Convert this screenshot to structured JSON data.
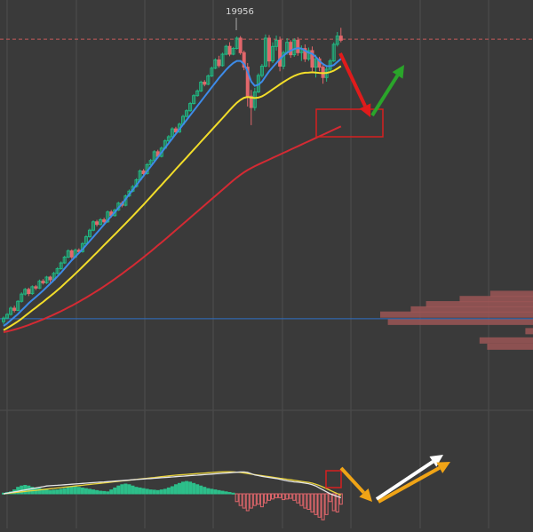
{
  "chart_data": {
    "type": "candlestick",
    "peak_label": "19956",
    "colors": {
      "background": "#3a3a3a",
      "grid": "#4d4d4d",
      "up": "#20b882",
      "down": "#e2676b",
      "ma_fast": "#3d8be8",
      "ma_mid": "#f2dd2a",
      "ma_slow": "#d42a33",
      "macd_line": "#e6e6e6",
      "signal_line": "#e8d23a",
      "hist_up": "#2dbe8a",
      "hist_down": "#e0666b",
      "price_line": "#c85a5a",
      "hline": "#2f6fc4",
      "volume_profile": "#9b5656",
      "arrow_red": "#e01b1b",
      "arrow_green": "#2aa52a",
      "arrow_white": "#ffffff",
      "arrow_orange": "#f0a416",
      "target_box": "#d62020"
    },
    "price_ylim": [
      16900,
      20100
    ],
    "price_level": 19910,
    "blue_level": 17210,
    "candles": [
      [
        17181,
        17216,
        17156,
        17232
      ],
      [
        17216,
        17252,
        17206,
        17264
      ],
      [
        17252,
        17312,
        17240,
        17330
      ],
      [
        17312,
        17291,
        17271,
        17336
      ],
      [
        17291,
        17378,
        17283,
        17390
      ],
      [
        17378,
        17448,
        17366,
        17465
      ],
      [
        17448,
        17493,
        17433,
        17508
      ],
      [
        17493,
        17453,
        17429,
        17510
      ],
      [
        17453,
        17519,
        17440,
        17533
      ],
      [
        17519,
        17506,
        17487,
        17536
      ],
      [
        17506,
        17572,
        17496,
        17588
      ],
      [
        17572,
        17557,
        17541,
        17593
      ],
      [
        17557,
        17612,
        17546,
        17624
      ],
      [
        17612,
        17586,
        17560,
        17625
      ],
      [
        17586,
        17648,
        17578,
        17664
      ],
      [
        17648,
        17693,
        17638,
        17708
      ],
      [
        17693,
        17749,
        17683,
        17763
      ],
      [
        17749,
        17805,
        17739,
        17819
      ],
      [
        17805,
        17866,
        17795,
        17880
      ],
      [
        17866,
        17806,
        17786,
        17880
      ],
      [
        17806,
        17872,
        17796,
        17888
      ],
      [
        17872,
        17858,
        17838,
        17890
      ],
      [
        17858,
        17935,
        17848,
        17950
      ],
      [
        17935,
        18002,
        17925,
        18018
      ],
      [
        18002,
        18065,
        17992,
        18080
      ],
      [
        18065,
        18146,
        18055,
        18160
      ],
      [
        18146,
        18121,
        18101,
        18165
      ],
      [
        18121,
        18166,
        18111,
        18182
      ],
      [
        18166,
        18146,
        18126,
        18186
      ],
      [
        18146,
        18241,
        18136,
        18256
      ],
      [
        18241,
        18206,
        18186,
        18260
      ],
      [
        18206,
        18260,
        18196,
        18274
      ],
      [
        18260,
        18326,
        18250,
        18340
      ],
      [
        18326,
        18306,
        18286,
        18346
      ],
      [
        18306,
        18396,
        18296,
        18410
      ],
      [
        18396,
        18442,
        18386,
        18458
      ],
      [
        18442,
        18487,
        18432,
        18502
      ],
      [
        18487,
        18552,
        18477,
        18566
      ],
      [
        18552,
        18637,
        18542,
        18652
      ],
      [
        18637,
        18612,
        18592,
        18656
      ],
      [
        18612,
        18698,
        18602,
        18714
      ],
      [
        18698,
        18738,
        18688,
        18754
      ],
      [
        18738,
        18823,
        18728,
        18838
      ],
      [
        18823,
        18778,
        18758,
        18842
      ],
      [
        18778,
        18858,
        18768,
        18874
      ],
      [
        18858,
        18928,
        18848,
        18944
      ],
      [
        18928,
        18968,
        18918,
        18984
      ],
      [
        18968,
        19044,
        18958,
        19060
      ],
      [
        19044,
        19014,
        18994,
        19064
      ],
      [
        19014,
        19089,
        19004,
        19104
      ],
      [
        19089,
        19164,
        19079,
        19180
      ],
      [
        19164,
        19219,
        19154,
        19234
      ],
      [
        19219,
        19289,
        19209,
        19304
      ],
      [
        19289,
        19365,
        19279,
        19380
      ],
      [
        19365,
        19410,
        19355,
        19425
      ],
      [
        19410,
        19495,
        19400,
        19510
      ],
      [
        19495,
        19475,
        19455,
        19515
      ],
      [
        19475,
        19555,
        19465,
        19570
      ],
      [
        19555,
        19630,
        19545,
        19646
      ],
      [
        19630,
        19710,
        19620,
        19726
      ],
      [
        19710,
        19655,
        19635,
        19750
      ],
      [
        19655,
        19765,
        19645,
        19780
      ],
      [
        19765,
        19841,
        19755,
        19856
      ],
      [
        19841,
        19765,
        19745,
        19881
      ],
      [
        19765,
        19821,
        19755,
        19836
      ],
      [
        19821,
        19920,
        19811,
        19936
      ],
      [
        19920,
        19780,
        19760,
        19940
      ],
      [
        19780,
        19640,
        19610,
        19800
      ],
      [
        19640,
        19360,
        19260,
        19680
      ],
      [
        19360,
        19250,
        19080,
        19420
      ],
      [
        19250,
        19400,
        19220,
        19440
      ],
      [
        19400,
        19560,
        19390,
        19580
      ],
      [
        19560,
        19650,
        19540,
        19670
      ],
      [
        19650,
        19920,
        19640,
        19956
      ],
      [
        19920,
        19700,
        19640,
        19950
      ],
      [
        19700,
        19840,
        19680,
        19880
      ],
      [
        19840,
        19900,
        19800,
        19945
      ],
      [
        19900,
        19650,
        19600,
        19935
      ],
      [
        19650,
        19780,
        19620,
        19800
      ],
      [
        19780,
        19880,
        19760,
        19920
      ],
      [
        19880,
        19760,
        19730,
        19900
      ],
      [
        19760,
        19900,
        19740,
        19920
      ],
      [
        19900,
        19780,
        19750,
        19930
      ],
      [
        19780,
        19820,
        19700,
        19850
      ],
      [
        19820,
        19720,
        19690,
        19860
      ],
      [
        19720,
        19800,
        19700,
        19830
      ],
      [
        19800,
        19640,
        19600,
        19840
      ],
      [
        19640,
        19720,
        19540,
        19760
      ],
      [
        19720,
        19640,
        19600,
        19740
      ],
      [
        19640,
        19540,
        19480,
        19680
      ],
      [
        19540,
        19620,
        19500,
        19660
      ],
      [
        19620,
        19700,
        19600,
        19720
      ],
      [
        19700,
        19860,
        19690,
        19880
      ],
      [
        19860,
        19940,
        19840,
        19980
      ],
      [
        19940,
        19900,
        19880,
        20020
      ]
    ],
    "ma_fast": [
      17140,
      17165,
      17195,
      17225,
      17255,
      17290,
      17325,
      17360,
      17390,
      17420,
      17450,
      17482,
      17515,
      17548,
      17582,
      17618,
      17655,
      17695,
      17735,
      17775,
      17810,
      17845,
      17880,
      17920,
      17960,
      18000,
      18040,
      18080,
      18120,
      18160,
      18200,
      18240,
      18280,
      18320,
      18365,
      18410,
      18455,
      18500,
      18545,
      18590,
      18635,
      18680,
      18725,
      18770,
      18815,
      18860,
      18905,
      18950,
      18995,
      19040,
      19085,
      19130,
      19175,
      19220,
      19265,
      19310,
      19355,
      19400,
      19445,
      19490,
      19535,
      19575,
      19615,
      19650,
      19680,
      19700,
      19700,
      19670,
      19600,
      19500,
      19460,
      19470,
      19500,
      19550,
      19600,
      19640,
      19680,
      19720,
      19750,
      19780,
      19800,
      19815,
      19825,
      19820,
      19800,
      19780,
      19770,
      19740,
      19700,
      19670,
      19650,
      19650,
      19660,
      19690,
      19720
    ],
    "ma_mid": [
      17100,
      17120,
      17140,
      17162,
      17185,
      17210,
      17238,
      17265,
      17292,
      17318,
      17345,
      17372,
      17400,
      17428,
      17456,
      17486,
      17516,
      17548,
      17580,
      17612,
      17645,
      17678,
      17712,
      17746,
      17780,
      17815,
      17850,
      17885,
      17920,
      17955,
      17990,
      18025,
      18060,
      18095,
      18130,
      18166,
      18202,
      18238,
      18275,
      18312,
      18350,
      18388,
      18426,
      18464,
      18502,
      18540,
      18578,
      18616,
      18654,
      18692,
      18730,
      18768,
      18806,
      18844,
      18882,
      18920,
      18958,
      18996,
      19034,
      19072,
      19110,
      19148,
      19186,
      19224,
      19262,
      19296,
      19324,
      19344,
      19352,
      19346,
      19342,
      19346,
      19358,
      19378,
      19402,
      19426,
      19450,
      19474,
      19496,
      19518,
      19538,
      19556,
      19570,
      19580,
      19586,
      19588,
      19590,
      19588,
      19584,
      19582,
      19584,
      19592,
      19606,
      19626,
      19650
    ],
    "ma_slow": [
      17080,
      17088,
      17096,
      17105,
      17115,
      17126,
      17138,
      17150,
      17163,
      17176,
      17190,
      17204,
      17219,
      17234,
      17250,
      17266,
      17283,
      17300,
      17318,
      17336,
      17355,
      17374,
      17394,
      17414,
      17435,
      17456,
      17478,
      17500,
      17523,
      17546,
      17570,
      17594,
      17619,
      17644,
      17670,
      17696,
      17722,
      17749,
      17776,
      17804,
      17832,
      17860,
      17889,
      17918,
      17947,
      17976,
      18006,
      18036,
      18066,
      18096,
      18126,
      18156,
      18186,
      18216,
      18246,
      18276,
      18306,
      18336,
      18366,
      18396,
      18426,
      18456,
      18486,
      18516,
      18546,
      18574,
      18600,
      18624,
      18646,
      18666,
      18684,
      18700,
      18716,
      18732,
      18748,
      18764,
      18780,
      18796,
      18812,
      18828,
      18844,
      18860,
      18876,
      18892,
      18908,
      18924,
      18940,
      18956,
      18972,
      18988,
      19004,
      19020,
      19036,
      19052,
      19068
    ],
    "macd_ylim": [
      -2.6,
      2.6
    ],
    "macd_line": [
      0.0,
      0.05,
      0.1,
      0.15,
      0.2,
      0.25,
      0.3,
      0.35,
      0.4,
      0.45,
      0.5,
      0.55,
      0.6,
      0.62,
      0.64,
      0.66,
      0.68,
      0.7,
      0.72,
      0.74,
      0.76,
      0.78,
      0.8,
      0.82,
      0.84,
      0.86,
      0.88,
      0.9,
      0.92,
      0.94,
      0.96,
      0.98,
      1.0,
      1.02,
      1.04,
      1.06,
      1.08,
      1.1,
      1.12,
      1.14,
      1.16,
      1.18,
      1.2,
      1.22,
      1.24,
      1.26,
      1.28,
      1.3,
      1.32,
      1.34,
      1.36,
      1.38,
      1.4,
      1.42,
      1.44,
      1.46,
      1.48,
      1.5,
      1.52,
      1.54,
      1.56,
      1.58,
      1.6,
      1.62,
      1.64,
      1.66,
      1.68,
      1.68,
      1.65,
      1.55,
      1.45,
      1.4,
      1.35,
      1.3,
      1.26,
      1.22,
      1.18,
      1.12,
      1.06,
      1.0,
      0.96,
      0.92,
      0.9,
      0.86,
      0.82,
      0.78,
      0.7,
      0.6,
      0.45,
      0.3,
      0.15,
      0.0,
      -0.1,
      -0.2,
      -0.3
    ],
    "signal_line": [
      0.0,
      0.03,
      0.06,
      0.09,
      0.12,
      0.15,
      0.18,
      0.21,
      0.24,
      0.27,
      0.3,
      0.33,
      0.36,
      0.39,
      0.42,
      0.45,
      0.48,
      0.51,
      0.54,
      0.57,
      0.6,
      0.63,
      0.66,
      0.69,
      0.72,
      0.75,
      0.78,
      0.81,
      0.84,
      0.87,
      0.9,
      0.93,
      0.96,
      0.99,
      1.02,
      1.05,
      1.08,
      1.11,
      1.14,
      1.17,
      1.2,
      1.23,
      1.26,
      1.29,
      1.32,
      1.35,
      1.38,
      1.41,
      1.44,
      1.46,
      1.48,
      1.5,
      1.52,
      1.54,
      1.56,
      1.58,
      1.6,
      1.62,
      1.64,
      1.66,
      1.68,
      1.69,
      1.7,
      1.7,
      1.69,
      1.67,
      1.64,
      1.6,
      1.56,
      1.52,
      1.48,
      1.44,
      1.4,
      1.36,
      1.32,
      1.28,
      1.24,
      1.2,
      1.16,
      1.12,
      1.08,
      1.04,
      1.0,
      0.96,
      0.92,
      0.88,
      0.82,
      0.74,
      0.64,
      0.52,
      0.4,
      0.27,
      0.14,
      0.02,
      -0.1
    ],
    "histogram": [
      0.05,
      0.1,
      0.15,
      0.3,
      0.5,
      0.6,
      0.65,
      0.6,
      0.5,
      0.45,
      0.4,
      0.35,
      0.3,
      0.25,
      0.28,
      0.3,
      0.35,
      0.4,
      0.5,
      0.55,
      0.55,
      0.5,
      0.45,
      0.4,
      0.35,
      0.3,
      0.25,
      0.2,
      0.18,
      0.15,
      0.3,
      0.45,
      0.6,
      0.7,
      0.75,
      0.7,
      0.6,
      0.5,
      0.45,
      0.4,
      0.35,
      0.3,
      0.28,
      0.25,
      0.3,
      0.35,
      0.45,
      0.55,
      0.7,
      0.8,
      0.9,
      0.95,
      0.9,
      0.8,
      0.7,
      0.6,
      0.5,
      0.4,
      0.35,
      0.3,
      0.25,
      0.2,
      0.15,
      0.1,
      0.05,
      -0.6,
      -0.9,
      -1.1,
      -1.3,
      -1.1,
      -0.9,
      -0.8,
      -1.0,
      -0.7,
      -0.5,
      -0.4,
      -0.3,
      -0.3,
      -0.45,
      -0.4,
      -0.35,
      -0.5,
      -0.7,
      -0.9,
      -1.1,
      -1.2,
      -1.4,
      -1.6,
      -1.8,
      -2.0,
      -1.6,
      -0.6,
      -1.3,
      -1.4,
      -0.8
    ],
    "volume_profile": [
      {
        "price": 17450,
        "size": 0.28
      },
      {
        "price": 17400,
        "size": 0.48
      },
      {
        "price": 17350,
        "size": 0.7
      },
      {
        "price": 17300,
        "size": 0.8
      },
      {
        "price": 17250,
        "size": 1.0
      },
      {
        "price": 17180,
        "size": 0.95
      },
      {
        "price": 17090,
        "size": 0.05
      },
      {
        "price": 17000,
        "size": 0.35
      },
      {
        "price": 16940,
        "size": 0.3
      }
    ]
  }
}
